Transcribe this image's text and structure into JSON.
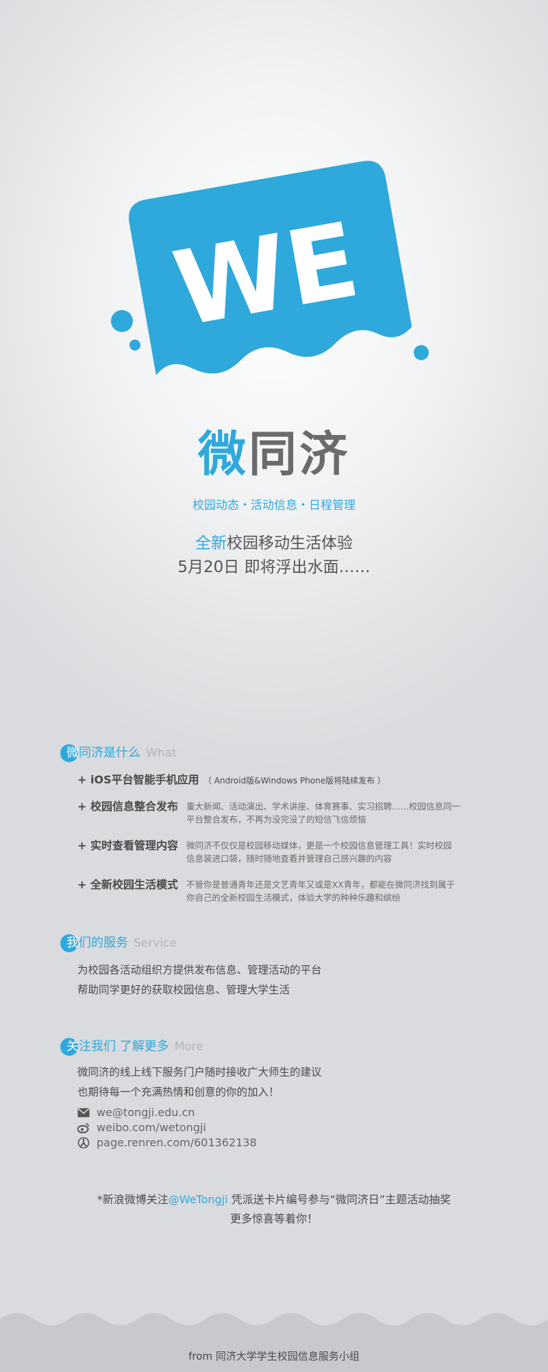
{
  "logo": {
    "text": "WE",
    "icon": "we-logo-icon",
    "colors": {
      "primary": "#2fa8dc",
      "white": "#ffffff"
    }
  },
  "brand": {
    "title_part1": "微",
    "title_part2": "同济",
    "tagline": "校园动态・活动信息・日程管理"
  },
  "headline": {
    "line1_highlight": "全新",
    "line1_rest": "校园移动生活体验",
    "line2": "5月20日  即将浮出水面……"
  },
  "what": {
    "title_first": "微",
    "title_rest": "同济是什么",
    "title_en": "What",
    "items": [
      {
        "name": "+ iOS平台智能手机应用",
        "note": "（ Android版&Windows Phone版将陆续发布 ）"
      },
      {
        "name": "+ 校园信息整合发布",
        "desc": [
          "重大新闻、活动演出、学术讲座、体育赛事、实习招聘……校园信息同一",
          "平台整合发布，不再为没完没了的短信飞信烦恼"
        ]
      },
      {
        "name": "+ 实时查看管理内容",
        "desc": [
          "微同济不仅仅是校园移动媒体，更是一个校园信息管理工具！实时校园",
          "信息装进口袋，随时随地查看并管理自己感兴趣的内容"
        ]
      },
      {
        "name": "+ 全新校园生活模式",
        "desc": [
          "不管你是普通青年还是文艺青年又或是XX青年，都能在微同济找到属于",
          "你自己的全新校园生活模式，体验大学的种种乐趣和缤纷"
        ]
      }
    ]
  },
  "service": {
    "title_first": "我",
    "title_rest": "们的服务",
    "title_en": "Service",
    "lines": [
      "为校园各活动组织方提供发布信息、管理活动的平台",
      "帮助同学更好的获取校园信息、管理大学生活"
    ]
  },
  "more": {
    "title_first": "关",
    "title_rest": "注我们  了解更多",
    "title_en": "More",
    "lines": [
      "微同济的线上线下服务门户随时接收广大师生的建议",
      "也期待每一个充满热情和创意的你的加入！"
    ],
    "contacts": [
      {
        "icon": "mail-icon",
        "text": "we@tongji.edu.cn"
      },
      {
        "icon": "weibo-icon",
        "text": "weibo.com/wetongji"
      },
      {
        "icon": "renren-icon",
        "text": "page.renren.com/601362138"
      }
    ]
  },
  "promo": {
    "prefix": "*新浪微博关注",
    "handle": "@WeTongji",
    "suffix": "  凭派送卡片编号参与“微同济日”主题活动抽奖",
    "line2": "更多惊喜等着你！"
  },
  "footer": {
    "text": "from 同济大学学生校园信息服务小组"
  },
  "colors": {
    "accent": "#2fa8dc",
    "text": "#4a4a4a",
    "muted": "#b5b5b5",
    "wave": "#c7c9cc"
  }
}
